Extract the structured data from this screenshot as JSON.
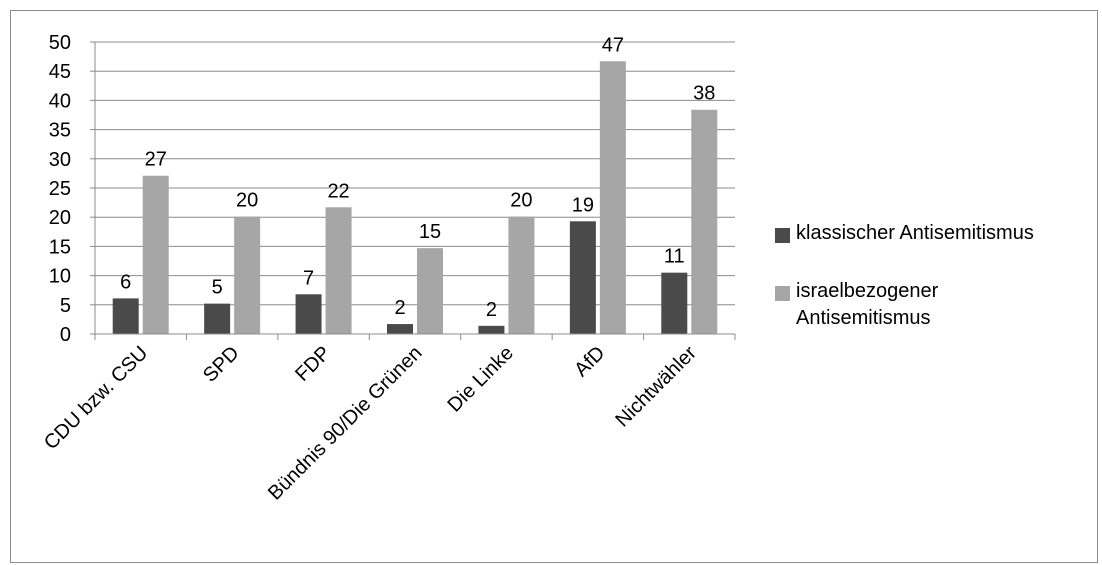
{
  "chart_data": {
    "type": "bar",
    "categories": [
      "CDU bzw. CSU",
      "SPD",
      "FDP",
      "Bündnis 90/Die Grünen",
      "Die Linke",
      "AfD",
      "Nichtwähler"
    ],
    "series": [
      {
        "name": "klassischer Antisemitismus",
        "values": [
          6,
          5,
          7,
          2,
          2,
          19,
          11
        ],
        "plotted": [
          6.1,
          5.2,
          6.8,
          1.7,
          1.4,
          19.3,
          10.5
        ],
        "color": "#4a4a4a"
      },
      {
        "name": "israelbezogener Antisemitismus",
        "values": [
          27,
          20,
          22,
          15,
          20,
          47,
          38
        ],
        "plotted": [
          27.1,
          20.1,
          21.7,
          14.7,
          20.1,
          46.7,
          38.4
        ],
        "color": "#a6a6a6"
      }
    ],
    "yticks": [
      "0",
      "5",
      "10",
      "15",
      "20",
      "25",
      "30",
      "35",
      "40",
      "45",
      "50"
    ],
    "ylim": [
      0,
      50
    ],
    "grid": true,
    "legend_position": "right",
    "title": "",
    "xlabel": "",
    "ylabel": ""
  }
}
